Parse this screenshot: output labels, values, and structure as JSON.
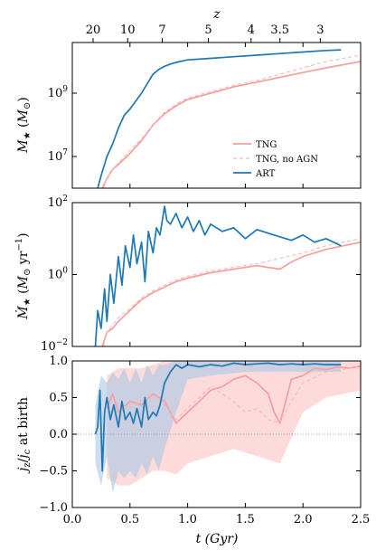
{
  "figure": {
    "top_axis_label": "z",
    "top_ticks": [
      {
        "z": "20",
        "t": 0.18
      },
      {
        "z": "10",
        "t": 0.48
      },
      {
        "z": "7",
        "t": 0.78
      },
      {
        "z": "5",
        "t": 1.18
      },
      {
        "z": "4",
        "t": 1.55
      },
      {
        "z": "3.5",
        "t": 1.8
      },
      {
        "z": "3",
        "t": 2.15
      }
    ],
    "x_label": "t (Gyr)",
    "x_ticks": [
      "0.0",
      "0.5",
      "1.0",
      "1.5",
      "2.0",
      "2.5"
    ],
    "xlim": [
      0.0,
      2.5
    ]
  },
  "legend": {
    "tng": "TNG",
    "tng_noagn": "TNG, no AGN",
    "art": "ART"
  },
  "colors": {
    "art": "#1f77b4",
    "tng": "#f4a0a0",
    "tng_noagn": "#f7b8b8",
    "tng_band": "#fccccc",
    "art_band": "#a9c6e4"
  },
  "chart_data": [
    {
      "type": "line",
      "panel": "stellar mass",
      "ylabel": "M★ (M⊙)",
      "yscale": "log",
      "ylim_log10": [
        6.0,
        10.6
      ],
      "yticks": [
        {
          "v": 7,
          "label": "10^7"
        },
        {
          "v": 9,
          "label": "10^9"
        }
      ],
      "series": [
        {
          "name": "TNG",
          "x": [
            0.26,
            0.3,
            0.35,
            0.4,
            0.5,
            0.6,
            0.7,
            0.8,
            0.9,
            1.0,
            1.2,
            1.4,
            1.6,
            1.8,
            2.0,
            2.2,
            2.5
          ],
          "y_log10": [
            6.0,
            6.3,
            6.6,
            6.75,
            7.1,
            7.5,
            8.0,
            8.35,
            8.6,
            8.8,
            9.0,
            9.2,
            9.35,
            9.5,
            9.65,
            9.8,
            10.0
          ]
        },
        {
          "name": "TNG, no AGN",
          "x": [
            0.27,
            0.3,
            0.35,
            0.4,
            0.5,
            0.6,
            0.7,
            0.8,
            0.9,
            1.0,
            1.2,
            1.4,
            1.6,
            1.8,
            2.0,
            2.2,
            2.5
          ],
          "y_log10": [
            6.0,
            6.3,
            6.6,
            6.8,
            7.2,
            7.55,
            8.0,
            8.4,
            8.65,
            8.85,
            9.05,
            9.25,
            9.4,
            9.6,
            9.8,
            10.0,
            10.2
          ]
        },
        {
          "name": "ART",
          "x": [
            0.22,
            0.25,
            0.3,
            0.35,
            0.4,
            0.45,
            0.5,
            0.55,
            0.6,
            0.65,
            0.7,
            0.75,
            0.8,
            0.85,
            0.9,
            1.0,
            1.2,
            1.4,
            1.6,
            1.8,
            2.0,
            2.2,
            2.33
          ],
          "y_log10": [
            6.0,
            6.4,
            7.0,
            7.4,
            7.9,
            8.3,
            8.5,
            8.75,
            9.0,
            9.3,
            9.6,
            9.75,
            9.85,
            9.92,
            9.97,
            10.05,
            10.1,
            10.15,
            10.2,
            10.25,
            10.3,
            10.35,
            10.37
          ]
        }
      ]
    },
    {
      "type": "line",
      "panel": "star formation rate",
      "ylabel": "Ṁ★ (M⊙ yr⁻¹)",
      "yscale": "log",
      "ylim_log10": [
        -2.0,
        2.0
      ],
      "yticks": [
        {
          "v": -2,
          "label": "10^-2"
        },
        {
          "v": 0,
          "label": "10^0"
        },
        {
          "v": 2,
          "label": "10^2"
        }
      ],
      "series": [
        {
          "name": "TNG",
          "x": [
            0.26,
            0.3,
            0.35,
            0.4,
            0.5,
            0.6,
            0.7,
            0.8,
            0.9,
            1.0,
            1.2,
            1.4,
            1.5,
            1.6,
            1.7,
            1.8,
            1.9,
            2.0,
            2.2,
            2.5
          ],
          "y_log10": [
            -2.0,
            -1.6,
            -1.5,
            -1.3,
            -1.0,
            -0.7,
            -0.5,
            -0.35,
            -0.2,
            -0.1,
            0.05,
            0.15,
            0.2,
            0.25,
            0.2,
            0.15,
            0.35,
            0.5,
            0.7,
            0.9
          ]
        },
        {
          "name": "TNG, no AGN",
          "x": [
            0.27,
            0.3,
            0.35,
            0.4,
            0.5,
            0.6,
            0.7,
            0.8,
            0.9,
            1.0,
            1.2,
            1.4,
            1.6,
            1.8,
            2.0,
            2.2,
            2.5
          ],
          "y_log10": [
            -2.0,
            -1.6,
            -1.4,
            -1.2,
            -0.95,
            -0.65,
            -0.45,
            -0.3,
            -0.15,
            -0.05,
            0.1,
            0.2,
            0.3,
            0.45,
            0.6,
            0.8,
            1.0
          ]
        },
        {
          "name": "ART",
          "x": [
            0.2,
            0.22,
            0.25,
            0.28,
            0.3,
            0.33,
            0.36,
            0.4,
            0.43,
            0.46,
            0.5,
            0.53,
            0.56,
            0.6,
            0.63,
            0.66,
            0.7,
            0.73,
            0.76,
            0.8,
            0.82,
            0.85,
            0.9,
            0.95,
            1.0,
            1.05,
            1.1,
            1.15,
            1.2,
            1.3,
            1.4,
            1.5,
            1.6,
            1.7,
            1.8,
            1.9,
            2.0,
            2.1,
            2.2,
            2.3,
            2.33
          ],
          "y_log10": [
            -2.0,
            -1.0,
            -1.5,
            -0.4,
            -1.3,
            0.0,
            -0.8,
            0.5,
            -0.3,
            0.8,
            0.2,
            1.1,
            0.3,
            0.9,
            -0.2,
            1.2,
            0.6,
            1.3,
            1.1,
            1.9,
            1.5,
            1.4,
            1.7,
            1.3,
            1.6,
            1.2,
            1.5,
            1.1,
            1.4,
            1.2,
            1.3,
            1.0,
            1.25,
            1.15,
            1.05,
            0.95,
            1.1,
            0.9,
            1.0,
            0.85,
            0.8
          ]
        }
      ]
    },
    {
      "type": "line",
      "panel": "angular momentum at birth",
      "ylabel": "jz/jc at birth",
      "ylim": [
        -1.0,
        1.0
      ],
      "yticks": [
        {
          "v": -1.0,
          "label": "−1.0"
        },
        {
          "v": -0.5,
          "label": "−0.5"
        },
        {
          "v": 0.0,
          "label": "0.0"
        },
        {
          "v": 0.5,
          "label": "0.5"
        },
        {
          "v": 1.0,
          "label": "1.0"
        }
      ],
      "series": [
        {
          "name": "TNG",
          "x": [
            0.3,
            0.35,
            0.4,
            0.5,
            0.6,
            0.7,
            0.8,
            0.9,
            1.0,
            1.1,
            1.2,
            1.3,
            1.4,
            1.5,
            1.6,
            1.7,
            1.75,
            1.8,
            1.85,
            1.9,
            2.0,
            2.1,
            2.2,
            2.3,
            2.4,
            2.5
          ],
          "y": [
            0.35,
            0.55,
            0.3,
            0.45,
            0.4,
            0.55,
            0.45,
            0.15,
            0.3,
            0.45,
            0.6,
            0.65,
            0.75,
            0.8,
            0.7,
            0.55,
            0.3,
            0.15,
            0.45,
            0.75,
            0.8,
            0.9,
            0.88,
            0.92,
            0.9,
            0.93
          ]
        },
        {
          "name": "TNG, no AGN",
          "x": [
            0.3,
            0.4,
            0.5,
            0.6,
            0.7,
            0.8,
            0.9,
            1.0,
            1.1,
            1.2,
            1.3,
            1.4,
            1.5,
            1.6,
            1.7,
            1.8,
            1.9,
            2.0,
            2.2,
            2.5
          ],
          "y": [
            0.3,
            0.4,
            0.35,
            0.45,
            0.5,
            0.4,
            0.2,
            0.35,
            0.5,
            0.65,
            0.55,
            0.45,
            0.3,
            0.35,
            0.2,
            0.15,
            0.45,
            0.7,
            0.85,
            0.92
          ]
        },
        {
          "name": "ART",
          "x": [
            0.2,
            0.22,
            0.24,
            0.26,
            0.28,
            0.3,
            0.33,
            0.36,
            0.4,
            0.43,
            0.46,
            0.5,
            0.53,
            0.56,
            0.6,
            0.63,
            0.66,
            0.7,
            0.73,
            0.76,
            0.8,
            0.85,
            0.9,
            0.95,
            1.0,
            1.1,
            1.2,
            1.3,
            1.4,
            1.5,
            1.6,
            1.7,
            1.8,
            1.9,
            2.0,
            2.1,
            2.2,
            2.33
          ],
          "y": [
            0.0,
            0.1,
            0.6,
            -0.5,
            0.3,
            0.5,
            0.2,
            0.4,
            0.1,
            0.45,
            0.2,
            0.3,
            0.15,
            0.35,
            0.1,
            0.5,
            0.2,
            0.3,
            0.25,
            0.4,
            0.7,
            0.85,
            0.95,
            0.9,
            0.95,
            0.92,
            0.95,
            0.93,
            0.97,
            0.95,
            0.96,
            0.97,
            0.95,
            0.96,
            0.95,
            0.96,
            0.95,
            0.95
          ]
        }
      ],
      "bands": [
        {
          "name": "TNG range",
          "x": [
            0.3,
            0.4,
            0.5,
            0.6,
            0.7,
            0.8,
            0.9,
            1.0,
            1.2,
            1.4,
            1.6,
            1.8,
            2.0,
            2.2,
            2.5
          ],
          "lo": [
            -0.6,
            -0.7,
            -0.7,
            -0.6,
            -0.5,
            -0.5,
            -0.55,
            -0.4,
            -0.3,
            -0.2,
            -0.3,
            -0.4,
            0.3,
            0.5,
            0.6
          ],
          "hi": [
            0.8,
            0.9,
            0.9,
            0.9,
            0.95,
            1.0,
            1.0,
            1.0,
            1.0,
            1.0,
            1.0,
            1.0,
            1.0,
            1.0,
            1.0
          ]
        },
        {
          "name": "ART range",
          "x": [
            0.2,
            0.25,
            0.3,
            0.35,
            0.4,
            0.45,
            0.5,
            0.55,
            0.6,
            0.65,
            0.7,
            0.75,
            0.8,
            0.9,
            1.0,
            1.2,
            1.5,
            1.8,
            2.1,
            2.33
          ],
          "lo": [
            -0.4,
            -0.7,
            -0.3,
            -0.8,
            -0.5,
            -0.6,
            -0.5,
            -0.6,
            -0.4,
            -0.55,
            -0.3,
            -0.5,
            -0.2,
            0.3,
            0.75,
            0.8,
            0.85,
            0.85,
            0.85,
            0.85
          ],
          "hi": [
            0.4,
            0.8,
            0.7,
            0.85,
            0.75,
            0.9,
            0.7,
            0.9,
            0.7,
            0.95,
            0.8,
            0.95,
            0.95,
            1.0,
            1.0,
            1.0,
            1.0,
            1.0,
            1.0,
            1.0
          ]
        }
      ],
      "reference_line": {
        "y": 0.0,
        "style": "dotted"
      }
    }
  ]
}
